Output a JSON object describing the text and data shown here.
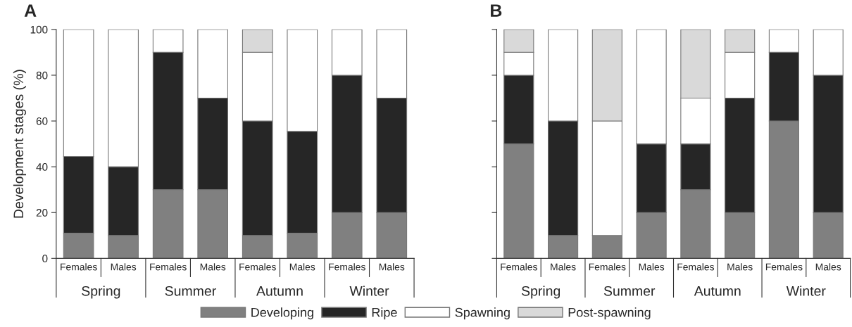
{
  "chart_data": [
    {
      "type": "bar",
      "title": "A",
      "ylabel": "Development stages (%)",
      "stacked": true,
      "categories": [
        "Females",
        "Males",
        "Females",
        "Males",
        "Females",
        "Males",
        "Females",
        "Males"
      ],
      "annotations": [
        "Spring",
        "Summer",
        "Autumn",
        "Winter"
      ],
      "ylim": [
        0,
        100
      ],
      "yticks": [
        0,
        20,
        40,
        60,
        80,
        100
      ],
      "grid": false,
      "legend": "bottom",
      "series": [
        {
          "name": "Developing",
          "color": "#808080",
          "values": [
            11,
            10,
            30,
            30,
            10,
            11,
            20,
            20
          ]
        },
        {
          "name": "Ripe",
          "color": "#262626",
          "values": [
            33.5,
            30,
            60,
            40,
            50,
            44.5,
            60,
            50
          ]
        },
        {
          "name": "Spawning",
          "color": "#ffffff",
          "values": [
            55.5,
            60,
            10,
            30,
            30,
            44.5,
            20,
            30
          ]
        },
        {
          "name": "Post-spawning",
          "color": "#d9d9d9",
          "values": [
            0,
            0,
            0,
            0,
            10,
            0,
            0,
            0
          ]
        }
      ]
    },
    {
      "type": "bar",
      "title": "B",
      "stacked": true,
      "tick_labels": "x",
      "categories": [
        "Females",
        "Males",
        "Females",
        "Males",
        "Females",
        "Males",
        "Females",
        "Males"
      ],
      "annotations": [
        "Spring",
        "Summer",
        "Autumn",
        "Winter"
      ],
      "ylim": [
        0,
        100
      ],
      "yticks": [
        {
          "value": 0,
          "label": null
        },
        {
          "value": 20,
          "label": null
        },
        {
          "value": 40,
          "label": null
        },
        {
          "value": 60,
          "label": null
        },
        {
          "value": 80,
          "label": null
        },
        {
          "value": 100,
          "label": null
        }
      ],
      "grid": false,
      "series": [
        {
          "color": "#808080",
          "values": [
            50,
            10,
            10,
            20,
            30,
            20,
            60,
            20
          ]
        },
        {
          "color": "#262626",
          "values": [
            30,
            50,
            0,
            30,
            20,
            50,
            30,
            60
          ]
        },
        {
          "color": "#ffffff",
          "values": [
            10,
            40,
            50,
            50,
            20,
            20,
            10,
            20
          ]
        },
        {
          "color": "#d9d9d9",
          "values": [
            10,
            0,
            40,
            0,
            30,
            10,
            0,
            0
          ]
        }
      ]
    }
  ]
}
